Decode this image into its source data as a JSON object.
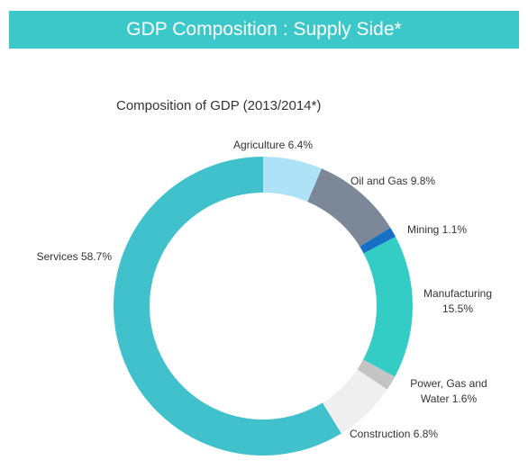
{
  "header": {
    "title": "GDP Composition : Supply Side*"
  },
  "chart_data": {
    "type": "pie",
    "donut": true,
    "title": "Composition of GDP (2013/2014*)",
    "start": "top, clockwise",
    "slices": [
      {
        "name": "Agriculture",
        "value": 6.4,
        "color": "#aee3f7",
        "label_lines": [
          "Agriculture 6.4%"
        ]
      },
      {
        "name": "Oil and Gas",
        "value": 9.8,
        "color": "#7c8797",
        "label_lines": [
          "Oil and Gas 9.8%"
        ]
      },
      {
        "name": "Mining",
        "value": 1.1,
        "color": "#1570c6",
        "label_lines": [
          "Mining 1.1%"
        ]
      },
      {
        "name": "Manufacturing",
        "value": 15.5,
        "color": "#33cdc6",
        "label_lines": [
          "Manufacturing",
          "15.5%"
        ]
      },
      {
        "name": "Power, Gas and Water",
        "value": 1.6,
        "color": "#c4c4c4",
        "label_lines": [
          "Power, Gas and",
          "Water 1.6%"
        ]
      },
      {
        "name": "Construction",
        "value": 6.8,
        "color": "#efefef",
        "label_lines": [
          "Construction 6.8%"
        ]
      },
      {
        "name": "Services",
        "value": 58.7,
        "color": "#40c1cc",
        "label_lines": [
          "Services 58.7%"
        ]
      }
    ]
  }
}
